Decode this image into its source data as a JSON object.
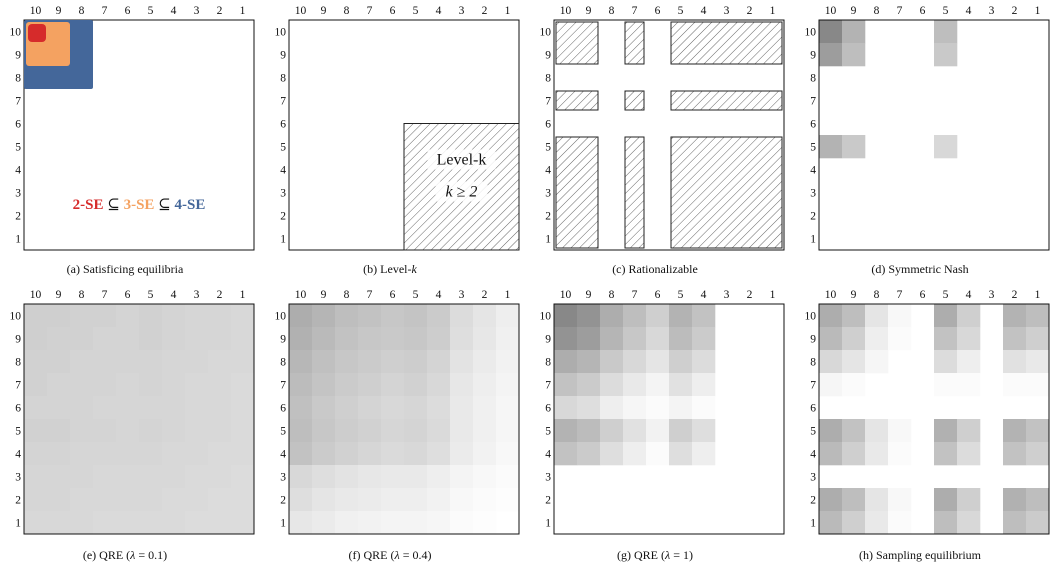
{
  "axis_labels": {
    "columns": [
      "10",
      "9",
      "8",
      "7",
      "6",
      "5",
      "4",
      "3",
      "2",
      "1"
    ],
    "rows": [
      "10",
      "9",
      "8",
      "7",
      "6",
      "5",
      "4",
      "3",
      "2",
      "1"
    ]
  },
  "colors": {
    "se2": "#d62b2b",
    "se3": "#f4a261",
    "se4": "#44679a",
    "hatch": "#555555",
    "grid_border": "#111111"
  },
  "panels": [
    {
      "id": "a",
      "caption": "(a) Satisficing equilibria",
      "legend": {
        "se2": "2-SE",
        "se3": "3-SE",
        "se4": "4-SE",
        "subset": "⊆"
      }
    },
    {
      "id": "b",
      "caption_prefix": "(b) Level-",
      "caption_k": "k",
      "label_line1": "Level-k",
      "label_line2": "k ≥ 2"
    },
    {
      "id": "c",
      "caption": "(c) Rationalizable"
    },
    {
      "id": "d",
      "caption": "(d) Symmetric Nash"
    },
    {
      "id": "e",
      "caption_prefix": "(e) QRE (",
      "caption_lambda": "λ",
      "caption_suffix": " = 0.1)"
    },
    {
      "id": "f",
      "caption_prefix": "(f) QRE (",
      "caption_lambda": "λ",
      "caption_suffix": " = 0.4)"
    },
    {
      "id": "g",
      "caption_prefix": "(g) QRE (",
      "caption_lambda": "λ",
      "caption_suffix": " = 1)"
    },
    {
      "id": "h",
      "caption": "(h) Sampling equilibrium"
    }
  ],
  "heatmaps": {
    "d": [
      [
        0.55,
        0.35,
        0,
        0,
        0,
        0.3,
        0,
        0,
        0,
        0
      ],
      [
        0.45,
        0.3,
        0,
        0,
        0,
        0.25,
        0,
        0,
        0,
        0
      ],
      [
        0,
        0,
        0,
        0,
        0,
        0,
        0,
        0,
        0,
        0
      ],
      [
        0,
        0,
        0,
        0,
        0,
        0,
        0,
        0,
        0,
        0
      ],
      [
        0,
        0,
        0,
        0,
        0,
        0,
        0,
        0,
        0,
        0
      ],
      [
        0.35,
        0.25,
        0,
        0,
        0,
        0.18,
        0,
        0,
        0,
        0
      ],
      [
        0,
        0,
        0,
        0,
        0,
        0,
        0,
        0,
        0,
        0
      ],
      [
        0,
        0,
        0,
        0,
        0,
        0,
        0,
        0,
        0,
        0
      ],
      [
        0,
        0,
        0,
        0,
        0,
        0,
        0,
        0,
        0,
        0
      ],
      [
        0,
        0,
        0,
        0,
        0,
        0,
        0,
        0,
        0,
        0
      ]
    ],
    "e": [
      [
        0.22,
        0.22,
        0.21,
        0.21,
        0.2,
        0.21,
        0.2,
        0.19,
        0.19,
        0.18
      ],
      [
        0.22,
        0.21,
        0.21,
        0.2,
        0.2,
        0.21,
        0.2,
        0.19,
        0.19,
        0.18
      ],
      [
        0.21,
        0.21,
        0.2,
        0.2,
        0.2,
        0.2,
        0.19,
        0.19,
        0.18,
        0.18
      ],
      [
        0.21,
        0.2,
        0.2,
        0.2,
        0.19,
        0.2,
        0.19,
        0.18,
        0.18,
        0.17
      ],
      [
        0.2,
        0.2,
        0.2,
        0.19,
        0.19,
        0.19,
        0.19,
        0.18,
        0.18,
        0.17
      ],
      [
        0.21,
        0.21,
        0.2,
        0.2,
        0.19,
        0.2,
        0.19,
        0.18,
        0.18,
        0.17
      ],
      [
        0.2,
        0.2,
        0.19,
        0.19,
        0.19,
        0.19,
        0.18,
        0.18,
        0.17,
        0.17
      ],
      [
        0.19,
        0.19,
        0.19,
        0.18,
        0.18,
        0.18,
        0.18,
        0.17,
        0.17,
        0.16
      ],
      [
        0.19,
        0.19,
        0.18,
        0.18,
        0.18,
        0.18,
        0.17,
        0.17,
        0.16,
        0.16
      ],
      [
        0.18,
        0.18,
        0.18,
        0.17,
        0.17,
        0.17,
        0.17,
        0.16,
        0.16,
        0.16
      ]
    ],
    "f": [
      [
        0.38,
        0.34,
        0.3,
        0.28,
        0.26,
        0.27,
        0.24,
        0.16,
        0.12,
        0.08
      ],
      [
        0.36,
        0.32,
        0.28,
        0.26,
        0.25,
        0.26,
        0.23,
        0.15,
        0.11,
        0.07
      ],
      [
        0.33,
        0.29,
        0.26,
        0.24,
        0.22,
        0.23,
        0.2,
        0.13,
        0.09,
        0.06
      ],
      [
        0.31,
        0.27,
        0.24,
        0.22,
        0.2,
        0.21,
        0.18,
        0.11,
        0.08,
        0.05
      ],
      [
        0.29,
        0.25,
        0.22,
        0.2,
        0.18,
        0.19,
        0.16,
        0.1,
        0.07,
        0.04
      ],
      [
        0.3,
        0.26,
        0.23,
        0.21,
        0.19,
        0.2,
        0.17,
        0.1,
        0.07,
        0.04
      ],
      [
        0.28,
        0.24,
        0.21,
        0.19,
        0.17,
        0.18,
        0.15,
        0.09,
        0.06,
        0.03
      ],
      [
        0.18,
        0.15,
        0.13,
        0.11,
        0.1,
        0.1,
        0.08,
        0.05,
        0.03,
        0.02
      ],
      [
        0.15,
        0.12,
        0.1,
        0.09,
        0.08,
        0.08,
        0.06,
        0.03,
        0.02,
        0.01
      ],
      [
        0.11,
        0.09,
        0.07,
        0.06,
        0.05,
        0.05,
        0.04,
        0.02,
        0.01,
        0.0
      ]
    ],
    "g": [
      [
        0.55,
        0.5,
        0.38,
        0.3,
        0.22,
        0.35,
        0.28,
        0,
        0,
        0
      ],
      [
        0.5,
        0.45,
        0.34,
        0.26,
        0.18,
        0.31,
        0.24,
        0,
        0,
        0
      ],
      [
        0.38,
        0.34,
        0.25,
        0.18,
        0.12,
        0.22,
        0.16,
        0,
        0,
        0
      ],
      [
        0.28,
        0.24,
        0.16,
        0.1,
        0.05,
        0.14,
        0.08,
        0,
        0,
        0
      ],
      [
        0.18,
        0.15,
        0.08,
        0.04,
        0.02,
        0.05,
        0.02,
        0,
        0,
        0
      ],
      [
        0.35,
        0.31,
        0.22,
        0.14,
        0.06,
        0.22,
        0.15,
        0,
        0,
        0
      ],
      [
        0.28,
        0.24,
        0.15,
        0.08,
        0.02,
        0.15,
        0.08,
        0,
        0,
        0
      ],
      [
        0,
        0,
        0,
        0,
        0,
        0,
        0,
        0,
        0,
        0
      ],
      [
        0,
        0,
        0,
        0,
        0,
        0,
        0,
        0,
        0,
        0
      ],
      [
        0,
        0,
        0,
        0,
        0,
        0,
        0,
        0,
        0,
        0
      ]
    ],
    "h": [
      [
        0.38,
        0.3,
        0.12,
        0.03,
        0,
        0.38,
        0.22,
        0,
        0.35,
        0.3
      ],
      [
        0.32,
        0.22,
        0.08,
        0.02,
        0,
        0.28,
        0.18,
        0,
        0.28,
        0.22
      ],
      [
        0.18,
        0.12,
        0.04,
        0,
        0,
        0.16,
        0.08,
        0,
        0.14,
        0.1
      ],
      [
        0.04,
        0.02,
        0,
        0,
        0,
        0.02,
        0.02,
        0,
        0.02,
        0.02
      ],
      [
        0,
        0,
        0,
        0,
        0,
        0,
        0,
        0,
        0,
        0
      ],
      [
        0.38,
        0.28,
        0.12,
        0.03,
        0,
        0.36,
        0.22,
        0,
        0.35,
        0.28
      ],
      [
        0.32,
        0.22,
        0.1,
        0.02,
        0,
        0.28,
        0.16,
        0,
        0.28,
        0.22
      ],
      [
        0,
        0,
        0,
        0,
        0,
        0,
        0,
        0,
        0,
        0
      ],
      [
        0.38,
        0.3,
        0.12,
        0.03,
        0,
        0.38,
        0.22,
        0,
        0.36,
        0.3
      ],
      [
        0.32,
        0.22,
        0.1,
        0.02,
        0,
        0.3,
        0.18,
        0,
        0.3,
        0.24
      ]
    ]
  }
}
